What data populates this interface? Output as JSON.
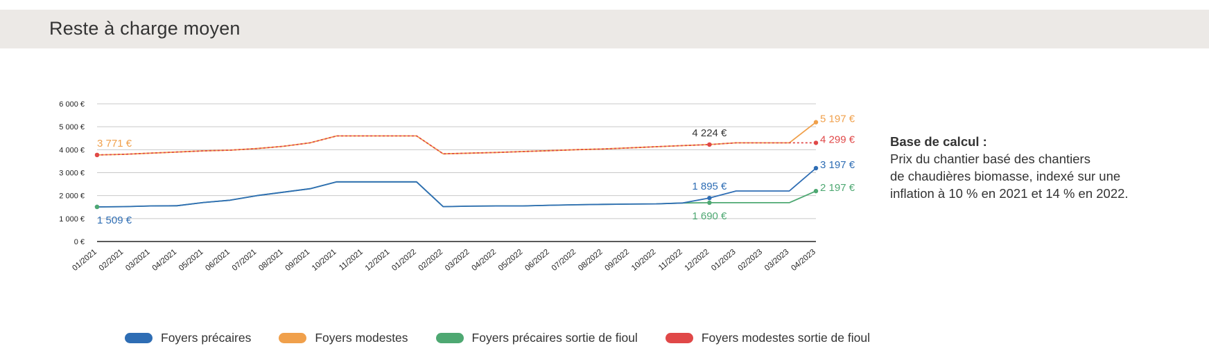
{
  "header": {
    "title": "Reste à charge moyen"
  },
  "note": {
    "title": "Base de calcul :",
    "lines": [
      "Prix du chantier basé des chantiers",
      "de chaudières biomasse, indexé sur une",
      "inflation à 10 % en 2021 et 14 % en 2022."
    ]
  },
  "chart_data": {
    "type": "line",
    "title": "",
    "xlabel": "",
    "ylabel": "",
    "x": [
      "01/2021",
      "02/2021",
      "03/2021",
      "04/2021",
      "05/2021",
      "06/2021",
      "07/2021",
      "08/2021",
      "09/2021",
      "10/2021",
      "11/2021",
      "12/2021",
      "01/2022",
      "02/2022",
      "03/2022",
      "04/2022",
      "05/2022",
      "06/2022",
      "07/2022",
      "08/2022",
      "09/2022",
      "10/2022",
      "11/2022",
      "12/2022",
      "01/2023",
      "02/2023",
      "03/2023",
      "04/2023"
    ],
    "yticks": [
      "0 €",
      "1 000 €",
      "2 000 €",
      "3 000 €",
      "4 000 €",
      "5 000 €",
      "6 000 €"
    ],
    "ylim": [
      0,
      6000
    ],
    "grid": true,
    "legend_position": "bottom",
    "series": [
      {
        "name": "Foyers précaires",
        "color": "#2e6db4",
        "values": [
          1509,
          1520,
          1550,
          1560,
          1700,
          1800,
          2000,
          2150,
          2300,
          2600,
          2600,
          2600,
          2600,
          1520,
          1540,
          1550,
          1550,
          1580,
          1600,
          1620,
          1630,
          1640,
          1680,
          1895,
          2200,
          2200,
          2200,
          3197
        ]
      },
      {
        "name": "Foyers modestes",
        "color": "#f0a04b",
        "values": [
          3771,
          3800,
          3850,
          3900,
          3950,
          3980,
          4050,
          4150,
          4300,
          4600,
          4600,
          4600,
          4600,
          3820,
          3850,
          3880,
          3920,
          3960,
          4000,
          4030,
          4080,
          4130,
          4180,
          4224,
          4299,
          4299,
          4299,
          5197
        ]
      },
      {
        "name": "Foyers précaires sortie de fioul",
        "color": "#4ea872",
        "values": [
          1509,
          1520,
          1550,
          1560,
          1700,
          1800,
          2000,
          2150,
          2300,
          2600,
          2600,
          2600,
          2600,
          1520,
          1540,
          1550,
          1550,
          1580,
          1600,
          1620,
          1630,
          1640,
          1680,
          1690,
          1690,
          1690,
          1690,
          2197
        ]
      },
      {
        "name": "Foyers modestes sortie de fioul",
        "color": "#e04848",
        "values": [
          3771,
          3800,
          3850,
          3900,
          3950,
          3980,
          4050,
          4150,
          4300,
          4600,
          4600,
          4600,
          4600,
          3820,
          3850,
          3880,
          3920,
          3960,
          4000,
          4030,
          4080,
          4130,
          4180,
          4224,
          4299,
          4299,
          4299,
          4299
        ]
      }
    ],
    "annotations": [
      {
        "text": "3 771 €",
        "color": "#f0a04b",
        "series": 1,
        "index": 0,
        "anchor": "above"
      },
      {
        "text": "1 509 €",
        "color": "#2e6db4",
        "series": 0,
        "index": 0,
        "anchor": "below"
      },
      {
        "text": "4 224 €",
        "color": "#333333",
        "series": 1,
        "index": 23,
        "anchor": "above"
      },
      {
        "text": "1 895 €",
        "color": "#2e6db4",
        "series": 0,
        "index": 23,
        "anchor": "above"
      },
      {
        "text": "1 690 €",
        "color": "#4ea872",
        "series": 2,
        "index": 23,
        "anchor": "below"
      },
      {
        "text": "5 197 €",
        "color": "#f0a04b",
        "series": 1,
        "index": 27,
        "anchor": "right"
      },
      {
        "text": "4 299 €",
        "color": "#e04848",
        "series": 3,
        "index": 27,
        "anchor": "right"
      },
      {
        "text": "3 197 €",
        "color": "#2e6db4",
        "series": 0,
        "index": 27,
        "anchor": "right"
      },
      {
        "text": "2 197 €",
        "color": "#4ea872",
        "series": 2,
        "index": 27,
        "anchor": "right"
      }
    ]
  }
}
